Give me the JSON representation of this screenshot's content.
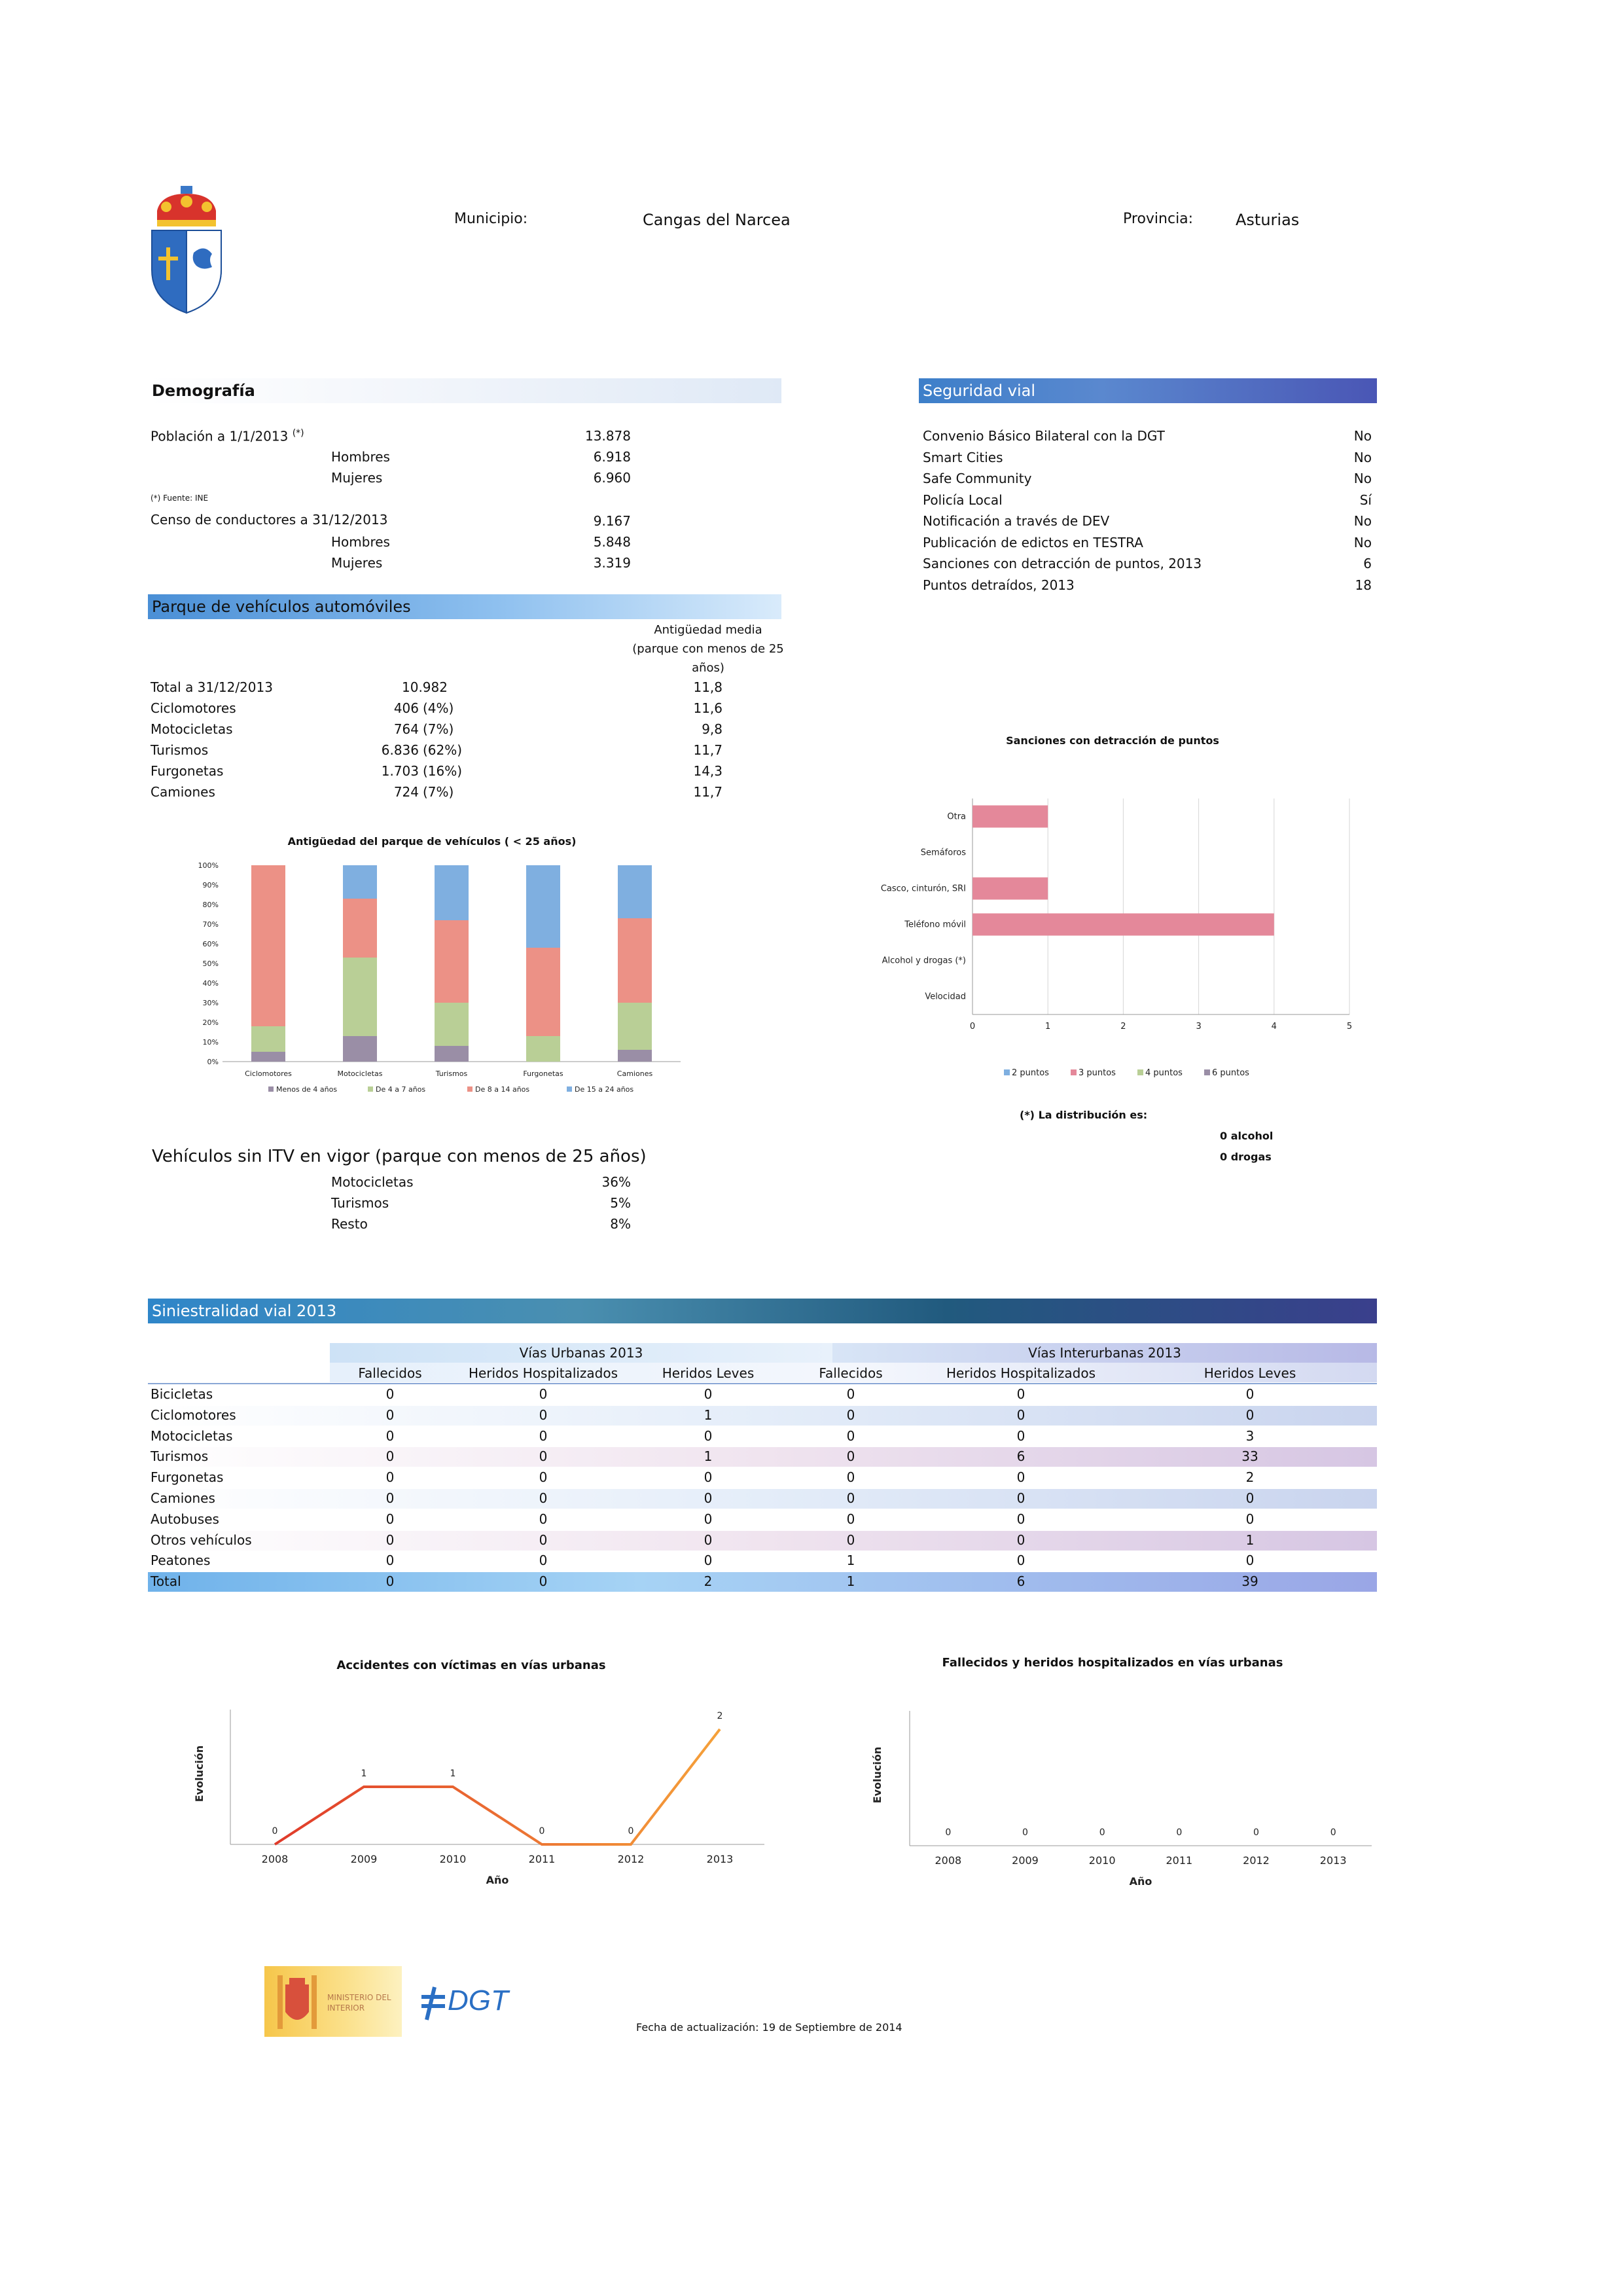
{
  "header": {
    "municipio_label": "Municipio:",
    "municipio_value": "Cangas del Narcea",
    "provincia_label": "Provincia:",
    "provincia_value": "Asturias"
  },
  "demografia": {
    "title": "Demografía",
    "poblacion_label": "Población a 1/1/2013",
    "poblacion_sup": "(*)",
    "poblacion_value": "13.878",
    "hombres_label": "Hombres",
    "hombres_value": "6.918",
    "mujeres_label": "Mujeres",
    "mujeres_value": "6.960",
    "fuente": "(*) Fuente: INE",
    "censo_label": "Censo de conductores a 31/12/2013",
    "censo_value": "9.167",
    "censo_hombres_label": "Hombres",
    "censo_hombres_value": "5.848",
    "censo_mujeres_label": "Mujeres",
    "censo_mujeres_value": "3.319"
  },
  "parque": {
    "title": "Parque de vehículos automóviles",
    "antig_header": "Antigüedad media (parque con menos de 25 años)",
    "rows": [
      {
        "label": "Total a 31/12/2013",
        "count": "10.982",
        "pct": "",
        "antig": "11,8"
      },
      {
        "label": "Ciclomotores",
        "count": "406",
        "pct": "(4%)",
        "antig": "11,6"
      },
      {
        "label": "Motocicletas",
        "count": "764",
        "pct": "(7%)",
        "antig": "9,8"
      },
      {
        "label": "Turismos",
        "count": "6.836",
        "pct": "(62%)",
        "antig": "11,7"
      },
      {
        "label": "Furgonetas",
        "count": "1.703",
        "pct": "(16%)",
        "antig": "14,3"
      },
      {
        "label": "Camiones",
        "count": "724",
        "pct": "(7%)",
        "antig": "11,7"
      }
    ]
  },
  "itv": {
    "title": "Vehículos sin ITV en vigor (parque con menos de 25 años)",
    "rows": [
      {
        "label": "Motocicletas",
        "value": "36%"
      },
      {
        "label": "Turismos",
        "value": "5%"
      },
      {
        "label": "Resto",
        "value": "8%"
      }
    ]
  },
  "seguridad": {
    "title": "Seguridad vial",
    "rows": [
      {
        "label": "Convenio Básico Bilateral con la DGT",
        "value": "No"
      },
      {
        "label": "Smart Cities",
        "value": "No"
      },
      {
        "label": "Safe Community",
        "value": "No"
      },
      {
        "label": "Policía Local",
        "value": "Sí"
      },
      {
        "label": "Notificación a través de DEV",
        "value": "No"
      },
      {
        "label": "Publicación de edictos en TESTRA",
        "value": "No"
      },
      {
        "label": "Sanciones con detracción de puntos, 2013",
        "value": "6"
      },
      {
        "label": "Puntos detraídos, 2013",
        "value": "18"
      }
    ],
    "distribucion_label": "(*) La distribución es:",
    "alcohol": "0  alcohol",
    "drogas": "0  drogas"
  },
  "siniestralidad": {
    "title": "Siniestralidad vial 2013",
    "group_urbanas": "Vías Urbanas 2013",
    "group_interurbanas": "Vías Interurbanas 2013",
    "columns": [
      "Fallecidos",
      "Heridos Hospitalizados",
      "Heridos Leves",
      "Fallecidos",
      "Heridos Hospitalizados",
      "Heridos Leves"
    ],
    "rows": [
      {
        "label": "Bicicletas",
        "values": [
          "0",
          "0",
          "0",
          "0",
          "0",
          "0"
        ]
      },
      {
        "label": "Ciclomotores",
        "values": [
          "0",
          "0",
          "1",
          "0",
          "0",
          "0"
        ]
      },
      {
        "label": "Motocicletas",
        "values": [
          "0",
          "0",
          "0",
          "0",
          "0",
          "3"
        ]
      },
      {
        "label": "Turismos",
        "values": [
          "0",
          "0",
          "1",
          "0",
          "6",
          "33"
        ]
      },
      {
        "label": "Furgonetas",
        "values": [
          "0",
          "0",
          "0",
          "0",
          "0",
          "2"
        ]
      },
      {
        "label": "Camiones",
        "values": [
          "0",
          "0",
          "0",
          "0",
          "0",
          "0"
        ]
      },
      {
        "label": "Autobuses",
        "values": [
          "0",
          "0",
          "0",
          "0",
          "0",
          "0"
        ]
      },
      {
        "label": "Otros vehículos",
        "values": [
          "0",
          "0",
          "0",
          "0",
          "0",
          "1"
        ]
      },
      {
        "label": "Peatones",
        "values": [
          "0",
          "0",
          "0",
          "1",
          "0",
          "0"
        ]
      },
      {
        "label": "Total",
        "values": [
          "0",
          "0",
          "2",
          "1",
          "6",
          "39"
        ]
      }
    ]
  },
  "footer": {
    "ministerio": "MINISTERIO DEL INTERIOR",
    "dgt": "DGT",
    "fecha": "Fecha de actualización: 19 de Septiembre de 2014"
  },
  "colors": {
    "menos4": "#9a8ea6",
    "de4a7": "#b9cf96",
    "de8a14": "#ec9186",
    "de15a24": "#7fafe0",
    "puntos2": "#7fafe0",
    "puntos3": "#e4889a",
    "puntos4": "#b9cf96",
    "puntos6": "#9a8ea6",
    "line_red": "#e03a2a",
    "line_orange": "#f5a13a"
  },
  "chart_data": [
    {
      "id": "antiguedad",
      "type": "bar",
      "stacked": true,
      "title": "Antigüedad del parque de vehículos ( < 25 años)",
      "categories": [
        "Ciclomotores",
        "Motocicletas",
        "Turismos",
        "Furgonetas",
        "Camiones"
      ],
      "ylim": [
        0,
        100
      ],
      "yticks": [
        "0%",
        "10%",
        "20%",
        "30%",
        "40%",
        "50%",
        "60%",
        "70%",
        "80%",
        "90%",
        "100%"
      ],
      "series": [
        {
          "name": "Menos de 4 años",
          "values": [
            5,
            13,
            8,
            0,
            6
          ]
        },
        {
          "name": "De 4 a 7 años",
          "values": [
            13,
            40,
            22,
            13,
            24
          ]
        },
        {
          "name": "De 8 a 14 años",
          "values": [
            82,
            30,
            42,
            45,
            43
          ]
        },
        {
          "name": "De 15 a 24 años",
          "values": [
            0,
            17,
            28,
            42,
            27
          ]
        }
      ]
    },
    {
      "id": "sanciones",
      "type": "bar",
      "orientation": "horizontal",
      "stacked": true,
      "title": "Sanciones con detracción de puntos",
      "categories": [
        "Otra",
        "Semáforos",
        "Casco, cinturón, SRI",
        "Teléfono móvil",
        "Alcohol y drogas (*)",
        "Velocidad"
      ],
      "xlim": [
        0,
        5
      ],
      "xticks": [
        "0",
        "1",
        "2",
        "3",
        "4",
        "5"
      ],
      "series": [
        {
          "name": "2 puntos",
          "values": [
            0,
            0,
            0,
            0,
            0,
            0
          ]
        },
        {
          "name": "3 puntos",
          "values": [
            1,
            0,
            1,
            4,
            0,
            0
          ]
        },
        {
          "name": "4 puntos",
          "values": [
            0,
            0,
            0,
            0,
            0,
            0
          ]
        },
        {
          "name": "6 puntos",
          "values": [
            0,
            0,
            0,
            0,
            0,
            0
          ]
        }
      ]
    },
    {
      "id": "accidentes",
      "type": "line",
      "title": "Accidentes con víctimas en vías urbanas",
      "xlabel": "Año",
      "ylabel": "Evolución",
      "x": [
        "2008",
        "2009",
        "2010",
        "2011",
        "2012",
        "2013"
      ],
      "series": [
        {
          "values": [
            0,
            1,
            1,
            0,
            0,
            2
          ]
        }
      ],
      "ylim": [
        0,
        2
      ]
    },
    {
      "id": "fallecidos",
      "type": "line",
      "title": "Fallecidos y heridos hospitalizados en vías urbanas",
      "xlabel": "Año",
      "ylabel": "Evolución",
      "x": [
        "2008",
        "2009",
        "2010",
        "2011",
        "2012",
        "2013"
      ],
      "series": [
        {
          "values": [
            0,
            0,
            0,
            0,
            0,
            0
          ]
        }
      ],
      "ylim": [
        0,
        2
      ]
    }
  ]
}
